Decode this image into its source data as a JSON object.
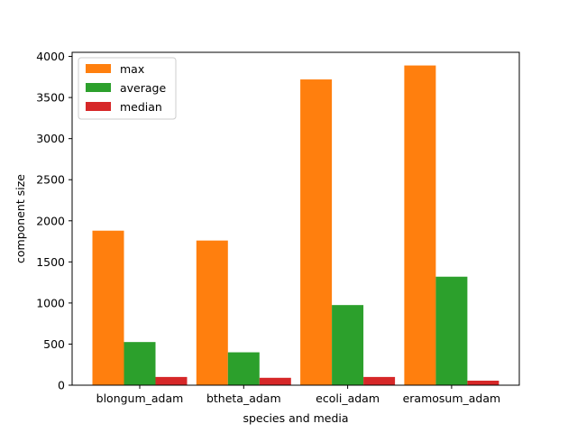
{
  "chart_data": {
    "type": "bar",
    "title": "",
    "xlabel": "species and media",
    "ylabel": "component size",
    "categories": [
      "blongum_adam",
      "btheta_adam",
      "ecoli_adam",
      "eramosum_adam"
    ],
    "series": [
      {
        "name": "max",
        "color": "#ff7f0e",
        "values": [
          1880,
          1760,
          3720,
          3890
        ]
      },
      {
        "name": "average",
        "color": "#2ca02c",
        "values": [
          525,
          400,
          975,
          1320
        ]
      },
      {
        "name": "median",
        "color": "#d62728",
        "values": [
          100,
          90,
          100,
          55
        ]
      }
    ],
    "ylim": [
      0,
      4050
    ],
    "yticks": [
      0,
      500,
      1000,
      1500,
      2000,
      2500,
      3000,
      3500,
      4000
    ],
    "legend": "top-left",
    "grid": false
  }
}
